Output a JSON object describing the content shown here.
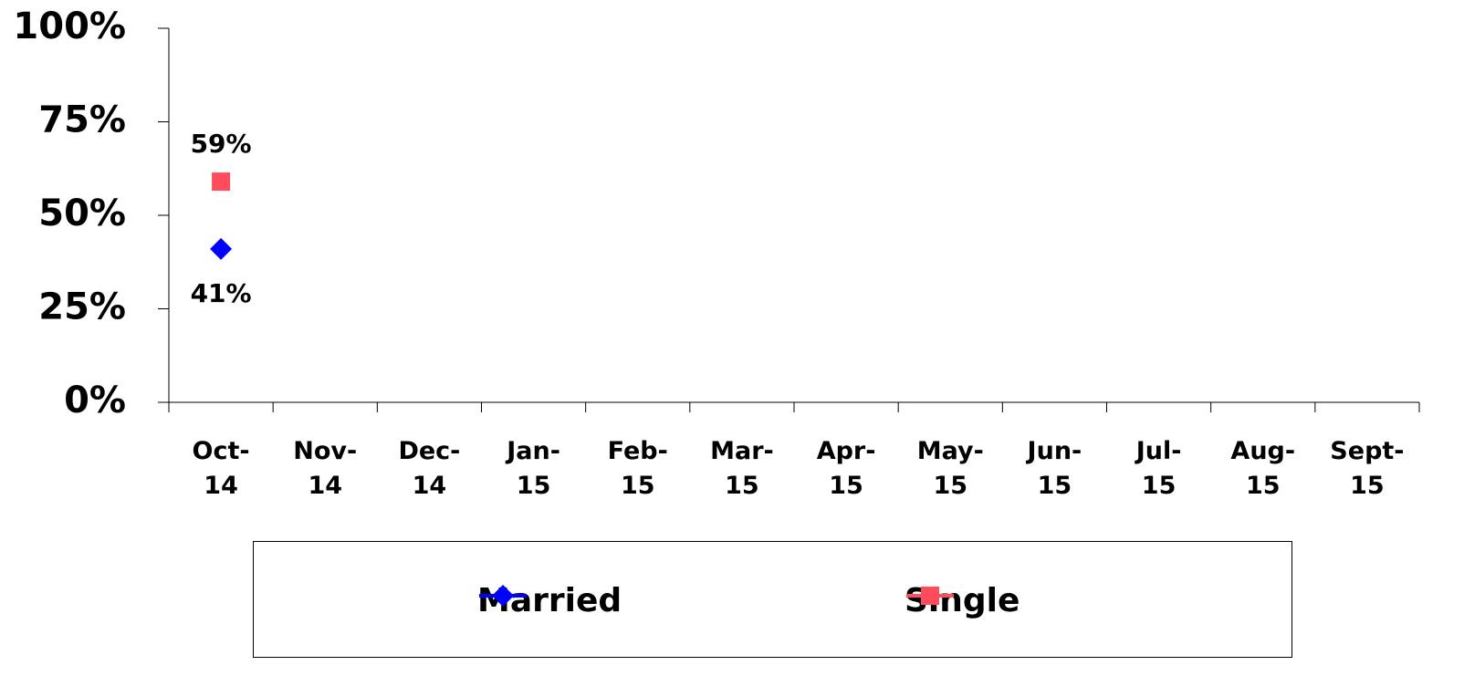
{
  "chart_data": {
    "type": "line",
    "categories": [
      "Oct-14",
      "Nov-14",
      "Dec-14",
      "Jan-15",
      "Feb-15",
      "Mar-15",
      "Apr-15",
      "May-15",
      "Jun-15",
      "Jul-15",
      "Aug-15",
      "Sept-15"
    ],
    "series": [
      {
        "name": "Married",
        "color": "#0000ff",
        "marker": "diamond",
        "values": [
          41,
          null,
          null,
          null,
          null,
          null,
          null,
          null,
          null,
          null,
          null,
          null
        ],
        "value_labels": [
          "41%",
          null,
          null,
          null,
          null,
          null,
          null,
          null,
          null,
          null,
          null,
          null
        ],
        "label_position": "below"
      },
      {
        "name": "Single",
        "color": "#ff4b5c",
        "marker": "square",
        "values": [
          59,
          null,
          null,
          null,
          null,
          null,
          null,
          null,
          null,
          null,
          null,
          null
        ],
        "value_labels": [
          "59%",
          null,
          null,
          null,
          null,
          null,
          null,
          null,
          null,
          null,
          null,
          null
        ],
        "label_position": "above"
      }
    ],
    "ylim": [
      0,
      100
    ],
    "yticks": [
      {
        "value": 0,
        "label": "0%"
      },
      {
        "value": 25,
        "label": "25%"
      },
      {
        "value": 50,
        "label": "50%"
      },
      {
        "value": 75,
        "label": "75%"
      },
      {
        "value": 100,
        "label": "100%"
      }
    ],
    "grid": false,
    "legend": "bottom"
  }
}
